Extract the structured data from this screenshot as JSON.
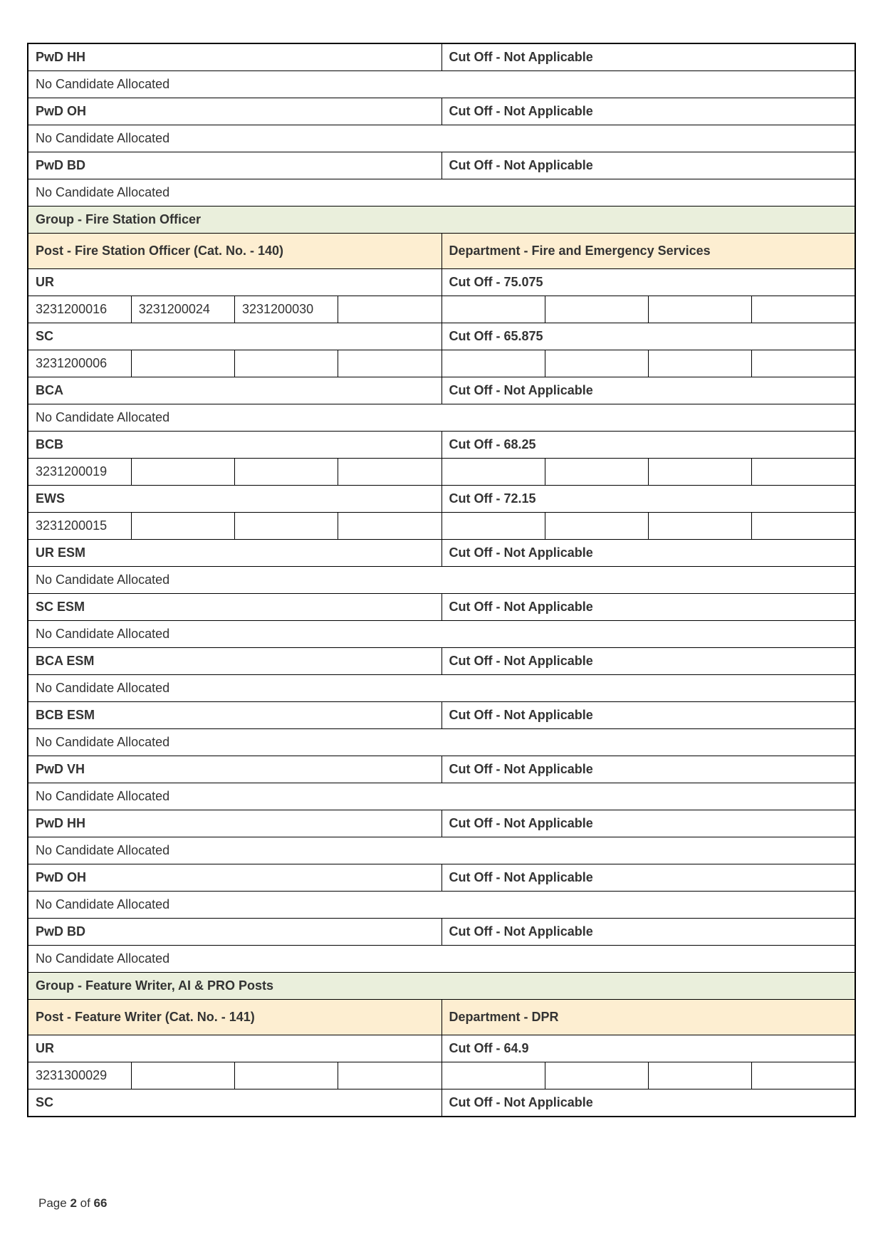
{
  "colors": {
    "group_bg": "#eaefdc",
    "post_bg": "#fdeed1",
    "border": "#000000",
    "text": "#333333",
    "page_bg": "#ffffff"
  },
  "footer": {
    "prefix": "Page ",
    "current": "2",
    "of": " of ",
    "total": "66"
  },
  "sections": [
    {
      "type": "cat",
      "label": "PwD HH",
      "cutoff": "Cut Off - Not Applicable"
    },
    {
      "type": "note",
      "text": "No Candidate Allocated"
    },
    {
      "type": "cat",
      "label": "PwD OH",
      "cutoff": "Cut Off - Not Applicable"
    },
    {
      "type": "note",
      "text": "No Candidate Allocated"
    },
    {
      "type": "cat",
      "label": "PwD BD",
      "cutoff": "Cut Off - Not Applicable"
    },
    {
      "type": "note",
      "text": "No Candidate Allocated"
    },
    {
      "type": "group",
      "text": "Group - Fire Station Officer"
    },
    {
      "type": "post",
      "post": "Post - Fire Station Officer (Cat. No. - 140)",
      "dept": "Department - Fire and Emergency Services"
    },
    {
      "type": "cat",
      "label": "UR",
      "cutoff": "Cut Off - 75.075"
    },
    {
      "type": "rolls",
      "cells": [
        "3231200016",
        "3231200024",
        "3231200030",
        "",
        "",
        "",
        "",
        ""
      ]
    },
    {
      "type": "cat",
      "label": "SC",
      "cutoff": "Cut Off - 65.875"
    },
    {
      "type": "rolls",
      "cells": [
        "3231200006",
        "",
        "",
        "",
        "",
        "",
        "",
        ""
      ]
    },
    {
      "type": "cat",
      "label": "BCA",
      "cutoff": "Cut Off - Not Applicable"
    },
    {
      "type": "note",
      "text": "No Candidate Allocated"
    },
    {
      "type": "cat",
      "label": "BCB",
      "cutoff": "Cut Off - 68.25"
    },
    {
      "type": "rolls",
      "cells": [
        "3231200019",
        "",
        "",
        "",
        "",
        "",
        "",
        ""
      ]
    },
    {
      "type": "cat",
      "label": "EWS",
      "cutoff": "Cut Off - 72.15"
    },
    {
      "type": "rolls",
      "cells": [
        "3231200015",
        "",
        "",
        "",
        "",
        "",
        "",
        ""
      ]
    },
    {
      "type": "cat",
      "label": "UR ESM",
      "cutoff": "Cut Off - Not Applicable"
    },
    {
      "type": "note",
      "text": "No Candidate Allocated"
    },
    {
      "type": "cat",
      "label": "SC ESM",
      "cutoff": "Cut Off - Not Applicable"
    },
    {
      "type": "note",
      "text": "No Candidate Allocated"
    },
    {
      "type": "cat",
      "label": "BCA ESM",
      "cutoff": "Cut Off - Not Applicable"
    },
    {
      "type": "note",
      "text": "No Candidate Allocated"
    },
    {
      "type": "cat",
      "label": "BCB ESM",
      "cutoff": "Cut Off - Not Applicable"
    },
    {
      "type": "note",
      "text": "No Candidate Allocated"
    },
    {
      "type": "cat",
      "label": "PwD VH",
      "cutoff": "Cut Off - Not Applicable"
    },
    {
      "type": "note",
      "text": "No Candidate Allocated"
    },
    {
      "type": "cat",
      "label": "PwD HH",
      "cutoff": "Cut Off - Not Applicable"
    },
    {
      "type": "note",
      "text": "No Candidate Allocated"
    },
    {
      "type": "cat",
      "label": "PwD OH",
      "cutoff": "Cut Off - Not Applicable"
    },
    {
      "type": "note",
      "text": "No Candidate Allocated"
    },
    {
      "type": "cat",
      "label": "PwD BD",
      "cutoff": "Cut Off - Not Applicable"
    },
    {
      "type": "note",
      "text": "No Candidate Allocated"
    },
    {
      "type": "group",
      "text": "Group - Feature Writer, AI & PRO Posts"
    },
    {
      "type": "post",
      "post": "Post - Feature Writer (Cat. No. - 141)",
      "dept": "Department - DPR"
    },
    {
      "type": "cat",
      "label": "UR",
      "cutoff": "Cut Off - 64.9"
    },
    {
      "type": "rolls",
      "cells": [
        "3231300029",
        "",
        "",
        "",
        "",
        "",
        "",
        ""
      ]
    },
    {
      "type": "cat",
      "label": "SC",
      "cutoff": "Cut Off - Not Applicable"
    }
  ]
}
